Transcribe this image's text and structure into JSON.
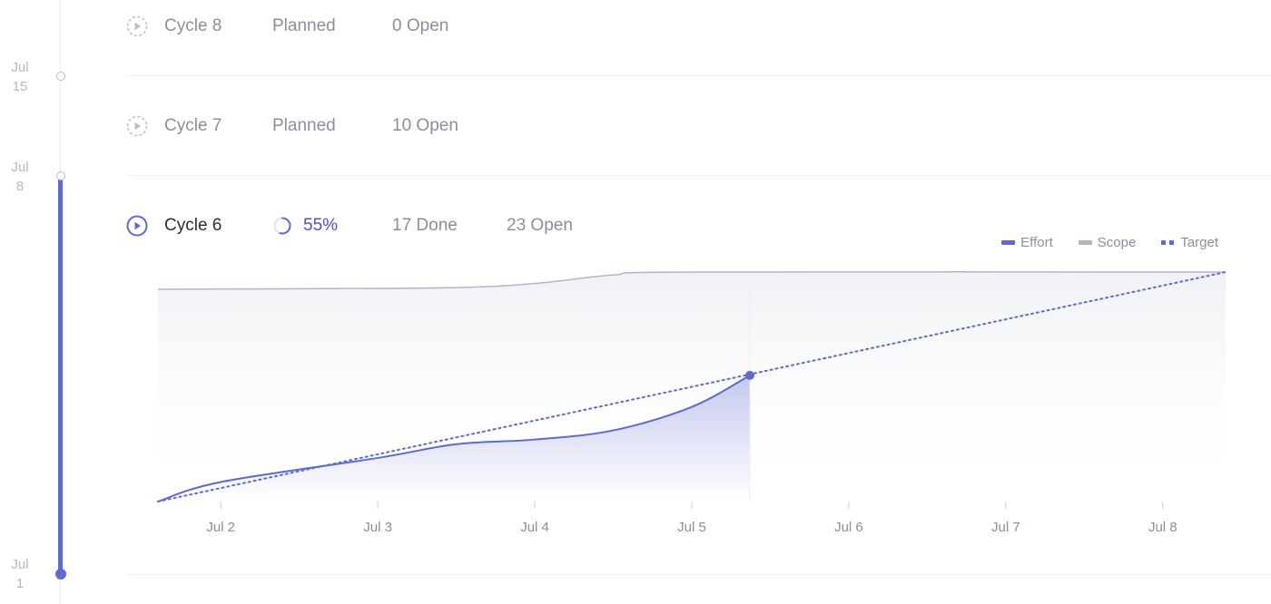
{
  "timeline": {
    "dates": [
      {
        "month": "Jul",
        "day": "15"
      },
      {
        "month": "Jul",
        "day": "8"
      },
      {
        "month": "Jul",
        "day": "1"
      }
    ]
  },
  "cycles": [
    {
      "name": "Cycle 8",
      "status": "Planned",
      "open": "0 Open"
    },
    {
      "name": "Cycle 7",
      "status": "Planned",
      "open": "10 Open"
    },
    {
      "name": "Cycle 6",
      "progress": "55%",
      "done": "17 Done",
      "open": "23 Open"
    }
  ],
  "legend": {
    "effort": "Effort",
    "scope": "Scope",
    "target": "Target"
  },
  "colors": {
    "accent": "#5e6ad2",
    "scope": "#b0b6c4",
    "muted": "#8a8f9e"
  },
  "chart_data": {
    "type": "line",
    "x_tick_labels": [
      "Jul 2",
      "Jul 3",
      "Jul 4",
      "Jul 5",
      "Jul 6",
      "Jul 7",
      "Jul 8"
    ],
    "x_range": [
      "Jul 1.6",
      "Jul 8.4"
    ],
    "today_x": 5.37,
    "series": [
      {
        "name": "Effort",
        "points": [
          [
            1.6,
            0
          ],
          [
            2.0,
            3.4
          ],
          [
            3.0,
            7.6
          ],
          [
            3.5,
            10.0
          ],
          [
            4.0,
            10.8
          ],
          [
            4.5,
            12.4
          ],
          [
            5.0,
            16.5
          ],
          [
            5.37,
            22.0
          ]
        ]
      },
      {
        "name": "Scope",
        "points": [
          [
            1.6,
            37
          ],
          [
            2.5,
            37.1
          ],
          [
            3.5,
            37.3
          ],
          [
            4.0,
            38.0
          ],
          [
            4.5,
            39.5
          ],
          [
            5.0,
            40.0
          ],
          [
            8.4,
            40.0
          ]
        ]
      },
      {
        "name": "Target",
        "points": [
          [
            1.6,
            0
          ],
          [
            8.4,
            40.0
          ]
        ]
      }
    ],
    "legend_position": "top-right",
    "grid": false
  }
}
